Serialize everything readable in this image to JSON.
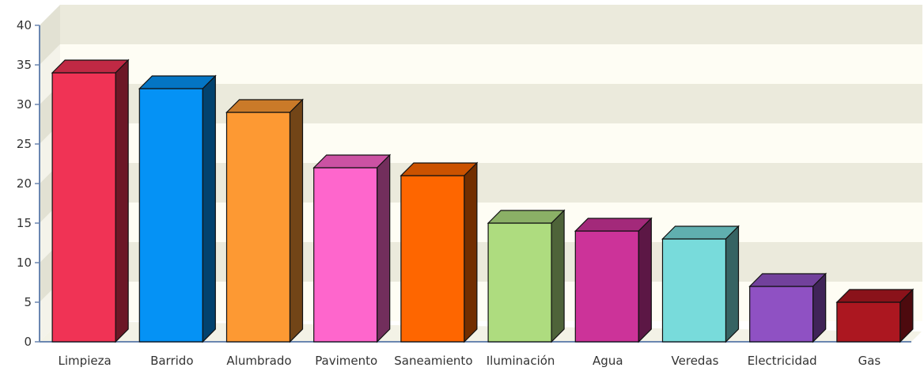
{
  "chart_data": {
    "type": "bar",
    "categories": [
      "Limpieza",
      "Barrido",
      "Alumbrado",
      "Pavimento",
      "Saneamiento",
      "Iluminación",
      "Agua",
      "Veredas",
      "Electricidad",
      "Gas"
    ],
    "values": [
      34,
      32,
      29,
      22,
      21,
      15,
      14,
      13,
      7,
      5
    ],
    "title": "",
    "xlabel": "",
    "ylabel": "",
    "ylim": [
      0,
      40
    ],
    "yticks": [
      0,
      5,
      10,
      15,
      20,
      25,
      30,
      35,
      40
    ],
    "grid": true,
    "style": "3d",
    "colors": [
      "#f03355",
      "#0592f5",
      "#fd9933",
      "#fe66cc",
      "#fe6600",
      "#aedc7f",
      "#cc3399",
      "#78dbdb",
      "#8f51c3",
      "#ac1720"
    ],
    "background_bands": [
      "#ebeadc",
      "#fefdf4"
    ]
  }
}
